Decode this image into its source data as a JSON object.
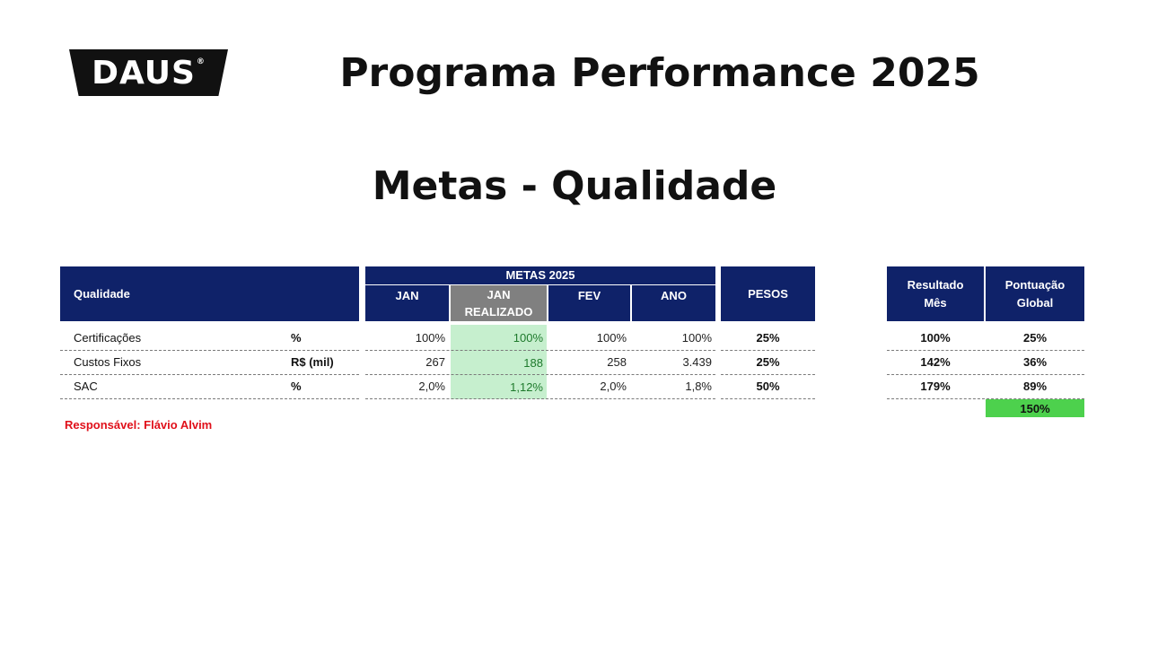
{
  "brand": {
    "logo_text": "DAUS",
    "logo_mark": "®"
  },
  "title": "Programa Performance 2025",
  "subtitle": "Metas - Qualidade",
  "table": {
    "section_label": "Qualidade",
    "group_header": "METAS 2025",
    "columns": {
      "jan": "JAN",
      "jan_realizado": "JAN\nREALIZADO",
      "fev": "FEV",
      "ano": "ANO",
      "pesos": "PESOS",
      "resultado": "Resultado\nMês",
      "pontuacao": "Pontuação\nGlobal"
    },
    "rows": [
      {
        "name": "Certificações",
        "unit": "%",
        "jan": "100%",
        "jan_realizado": "100%",
        "fev": "100%",
        "ano": "100%",
        "peso": "25%",
        "resultado": "100%",
        "pontuacao": "25%"
      },
      {
        "name": "Custos Fixos",
        "unit": "R$ (mil)",
        "jan": "267",
        "jan_realizado": "188",
        "fev": "258",
        "ano": "3.439",
        "peso": "25%",
        "resultado": "142%",
        "pontuacao": "36%"
      },
      {
        "name": "SAC",
        "unit": "%",
        "jan": "2,0%",
        "jan_realizado": "1,12%",
        "fev": "2,0%",
        "ano": "1,8%",
        "peso": "50%",
        "resultado": "179%",
        "pontuacao": "89%"
      }
    ],
    "total_pontuacao": "150%"
  },
  "responsavel": "Responsável: Flávio Alvim",
  "colors": {
    "header_navy": "#0f2269",
    "realizado_gray": "#808080",
    "realizado_green_bg": "#c6efce",
    "total_green": "#4dd14d",
    "responsavel_red": "#e0101a"
  }
}
